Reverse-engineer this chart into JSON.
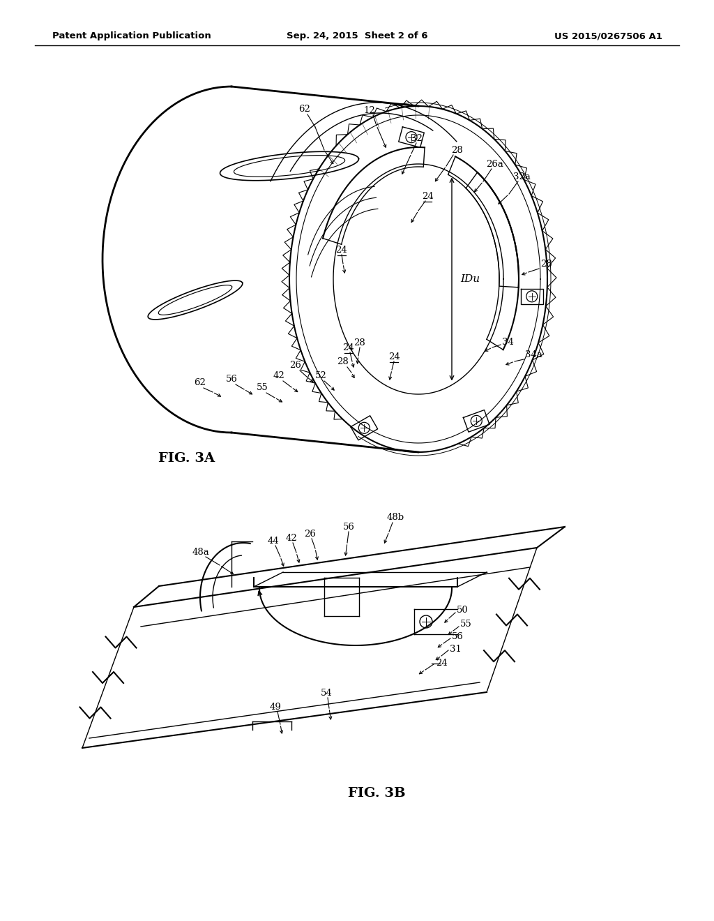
{
  "background_color": "#ffffff",
  "line_color": "#000000",
  "header_left": "Patent Application Publication",
  "header_center": "Sep. 24, 2015  Sheet 2 of 6",
  "header_right": "US 2015/0267506 A1",
  "fig3a_label": "FIG. 3A",
  "fig3b_label": "FIG. 3B"
}
